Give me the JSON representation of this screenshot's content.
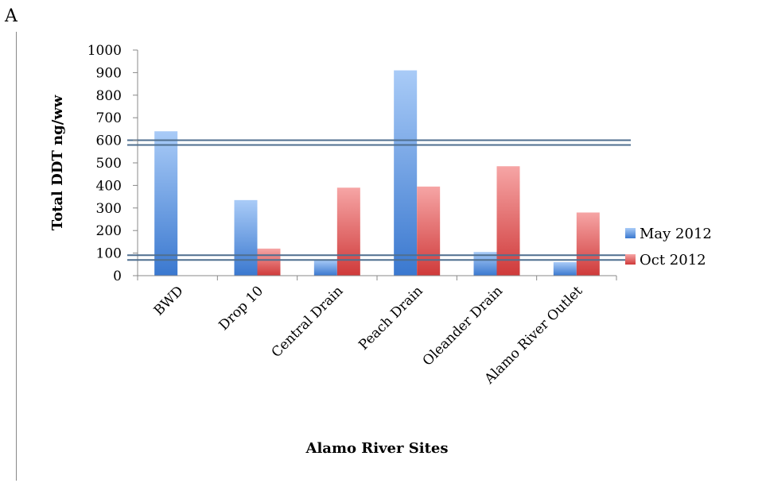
{
  "panel_label": "A",
  "chart_data": {
    "type": "bar",
    "title": "",
    "xlabel": "Alamo River Sites",
    "ylabel": "Total DDT ng/ww",
    "ylim": [
      0,
      1000
    ],
    "yticks": [
      0,
      100,
      200,
      300,
      400,
      500,
      600,
      700,
      800,
      900,
      1000
    ],
    "categories": [
      "BWD",
      "Drop 10",
      "Central Drain",
      "Peach Drain",
      "Oleander Drain",
      "Alamo River Outlet"
    ],
    "series": [
      {
        "name": "May 2012",
        "color": "#4a86d8",
        "values": [
          640,
          335,
          70,
          910,
          105,
          60
        ]
      },
      {
        "name": "Oct 2012",
        "color": "#d84a4a",
        "values": [
          0,
          120,
          390,
          395,
          485,
          280
        ]
      }
    ],
    "reference_lines": [
      590,
      80
    ],
    "legend_position": "right",
    "grid": false
  }
}
